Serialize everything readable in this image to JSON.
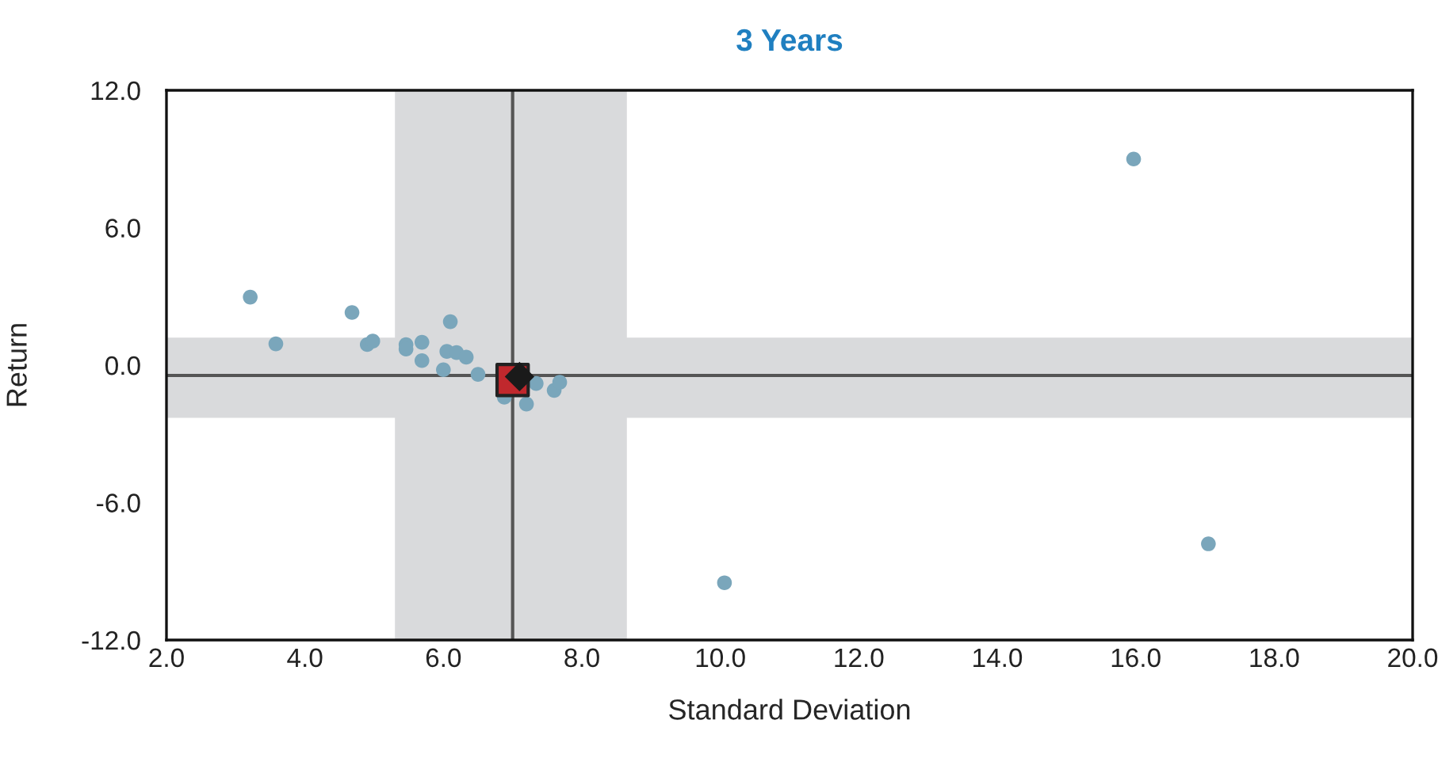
{
  "chart_data": {
    "type": "scatter",
    "title": "3 Years",
    "xlabel": "Standard Deviation",
    "ylabel": "Return",
    "series": [
      {
        "color": "#7aa6bb",
        "marker": "circle",
        "x": [
          3.21,
          3.58,
          4.68,
          4.9,
          4.98,
          5.46,
          5.46,
          5.69,
          5.69,
          6.1,
          6.05,
          6.19,
          6.33,
          6.0,
          6.5,
          6.88,
          7.2,
          7.34,
          7.6,
          7.68,
          10.06,
          15.97,
          17.05
        ],
        "values": [
          2.97,
          0.93,
          2.3,
          0.9,
          1.05,
          0.9,
          0.7,
          1.0,
          0.2,
          1.9,
          0.6,
          0.55,
          0.35,
          -0.2,
          -0.4,
          -1.4,
          -1.7,
          -0.8,
          -1.1,
          -0.75,
          -9.5,
          9.0,
          -7.8
        ]
      },
      {
        "color": "#c0282d",
        "marker": "square",
        "x": [
          7.0
        ],
        "values": [
          -0.65
        ]
      },
      {
        "color": "#1a1a1a",
        "marker": "diamond",
        "x": [
          7.1
        ],
        "values": [
          -0.5
        ]
      }
    ],
    "xlim": [
      2.0,
      20.0
    ],
    "xticks": [
      {
        "value": 2,
        "label": "2.0"
      },
      {
        "value": 4,
        "label": "4.0"
      },
      {
        "value": 6,
        "label": "6.0"
      },
      {
        "value": 8,
        "label": "8.0"
      },
      {
        "value": 10,
        "label": "10.0"
      },
      {
        "value": 12,
        "label": "12.0"
      },
      {
        "value": 14,
        "label": "14.0"
      },
      {
        "value": 16,
        "label": "16.0"
      },
      {
        "value": 18,
        "label": "18.0"
      },
      {
        "value": 20,
        "label": "20.0"
      }
    ],
    "ylim": [
      -12.0,
      12.0
    ],
    "yticks": [
      {
        "value": -12,
        "label": "-12.0"
      },
      {
        "value": -6,
        "label": "-6.0"
      },
      {
        "value": 0,
        "label": "0.0"
      },
      {
        "value": 6,
        "label": "6.0"
      },
      {
        "value": 12,
        "label": "12.0"
      }
    ],
    "ref_lines": [
      {
        "axis": "x",
        "value": 7.0,
        "color": "#555555"
      },
      {
        "axis": "y",
        "value": -0.45,
        "color": "#555555"
      }
    ],
    "bands": [
      {
        "axis": "x",
        "from": 5.3,
        "to": 8.65,
        "color": "#d9dadc"
      },
      {
        "axis": "y",
        "from": -2.3,
        "to": 1.2,
        "color": "#d9dadc"
      }
    ],
    "grid": false
  }
}
